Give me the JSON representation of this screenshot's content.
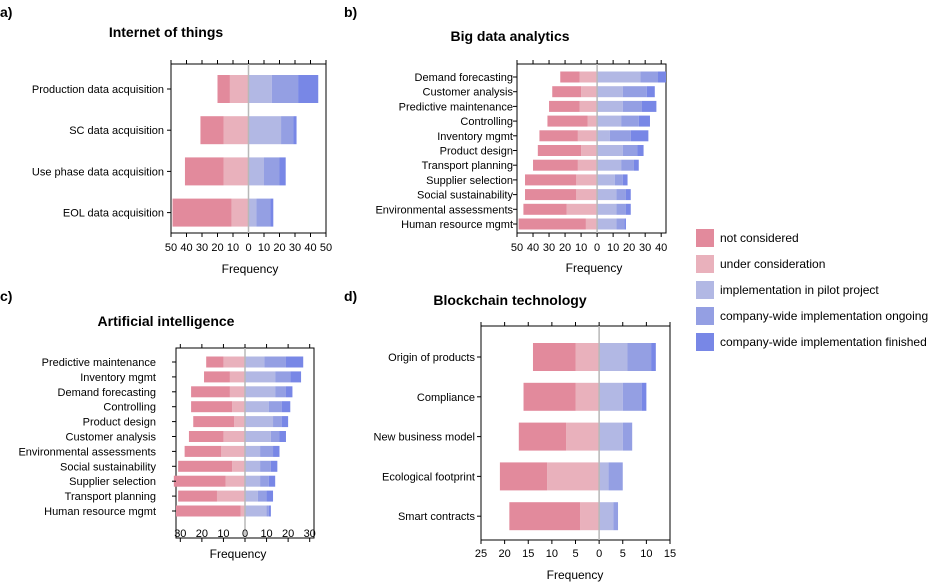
{
  "legend": {
    "entries": [
      {
        "label": "not considered",
        "color": "#e28a9c"
      },
      {
        "label": "under consideration",
        "color": "#e9b1bc"
      },
      {
        "label": "implementation in pilot project",
        "color": "#b2b8e4"
      },
      {
        "label": "company-wide implementation ongoing",
        "color": "#949fe3"
      },
      {
        "label": "company-wide implementation finished",
        "color": "#7887e6"
      }
    ]
  },
  "chart_data": [
    {
      "type": "bar",
      "letter": "a)",
      "title": "Internet of things",
      "xlabel": "Frequency",
      "xlim": [
        -50,
        50
      ],
      "xticks": [
        "50",
        "40",
        "30",
        "20",
        "10",
        "0",
        "10",
        "20",
        "30",
        "40",
        "50"
      ],
      "categories": [
        "Production data acquisition",
        "SC data acquisition",
        "Use phase data acquisition",
        "EOL data acquisition"
      ],
      "series": [
        {
          "name": "not considered",
          "values": [
            -8,
            -15,
            -25,
            -38
          ]
        },
        {
          "name": "under consideration",
          "values": [
            -12,
            -16,
            -16,
            -11
          ]
        },
        {
          "name": "implementation in pilot project",
          "values": [
            15,
            21,
            10,
            5
          ]
        },
        {
          "name": "company-wide implementation ongoing",
          "values": [
            17,
            8,
            10,
            9
          ]
        },
        {
          "name": "company-wide implementation finished",
          "values": [
            13,
            2,
            4,
            2
          ]
        }
      ]
    },
    {
      "type": "bar",
      "letter": "b)",
      "title": "Big data analytics",
      "xlabel": "Frequency",
      "xlim": [
        -50,
        43
      ],
      "xticks": [
        "50",
        "40",
        "30",
        "20",
        "10",
        "0",
        "10",
        "20",
        "30",
        "40"
      ],
      "categories": [
        "Demand forecasting",
        "Customer analysis",
        "Predictive maintenance",
        "Controlling",
        "Inventory mgmt",
        "Product design",
        "Transport planning",
        "Supplier selection",
        "Social sustainability",
        "Environmental assessments",
        "Human resource mgmt"
      ],
      "series": [
        {
          "name": "not considered",
          "values": [
            -12,
            -18,
            -19,
            -25,
            -24,
            -27,
            -28,
            -32,
            -32,
            -27,
            -42
          ]
        },
        {
          "name": "under consideration",
          "values": [
            -11,
            -10,
            -11,
            -6,
            -12,
            -10,
            -12,
            -13,
            -13,
            -19,
            -7
          ]
        },
        {
          "name": "implementation in pilot project",
          "values": [
            27,
            16,
            16,
            15,
            8,
            16,
            15,
            11,
            12,
            12,
            12
          ]
        },
        {
          "name": "company-wide implementation ongoing",
          "values": [
            11,
            15,
            12,
            11,
            13,
            9,
            8,
            5,
            6,
            6,
            5
          ]
        },
        {
          "name": "company-wide implementation finished",
          "values": [
            5,
            5,
            9,
            7,
            11,
            4,
            3,
            3,
            3,
            3,
            1
          ]
        }
      ]
    },
    {
      "type": "bar",
      "letter": "c)",
      "title": "Artificial intelligence",
      "xlabel": "Frequency",
      "xlim": [
        -32,
        32
      ],
      "xticks": [
        "30",
        "20",
        "10",
        "0",
        "10",
        "20",
        "30"
      ],
      "categories": [
        "Predictive maintenance",
        "Inventory mgmt",
        "Demand forecasting",
        "Controlling",
        "Product design",
        "Customer analysis",
        "Environmental assessments",
        "Social sustainability",
        "Supplier selection",
        "Transport planning",
        "Human resource mgmt"
      ],
      "series": [
        {
          "name": "not considered",
          "values": [
            -8,
            -12,
            -18,
            -19,
            -19,
            -16,
            -17,
            -25,
            -24,
            -18,
            -30
          ]
        },
        {
          "name": "under consideration",
          "values": [
            -10,
            -7,
            -7,
            -6,
            -5,
            -10,
            -11,
            -6,
            -9,
            -13,
            -2
          ]
        },
        {
          "name": "implementation in pilot project",
          "values": [
            9,
            14,
            14,
            11,
            13,
            12,
            7,
            7,
            7,
            6,
            10
          ]
        },
        {
          "name": "company-wide implementation ongoing",
          "values": [
            10,
            7,
            5,
            6,
            4,
            4,
            6,
            5,
            4,
            4,
            1
          ]
        },
        {
          "name": "company-wide implementation finished",
          "values": [
            8,
            5,
            3,
            4,
            3,
            3,
            3,
            3,
            3,
            3,
            1
          ]
        }
      ]
    },
    {
      "type": "bar",
      "letter": "d)",
      "title": "Blockchain technology",
      "xlabel": "Frequency",
      "xlim": [
        -25,
        15
      ],
      "xticks": [
        "25",
        "20",
        "15",
        "10",
        "5",
        "0",
        "5",
        "10",
        "15"
      ],
      "categories": [
        "Origin of products",
        "Compliance",
        "New business model",
        "Ecological footprint",
        "Smart contracts"
      ],
      "series": [
        {
          "name": "not considered",
          "values": [
            -9,
            -11,
            -10,
            -10,
            -15
          ]
        },
        {
          "name": "under consideration",
          "values": [
            -5,
            -5,
            -7,
            -11,
            -4
          ]
        },
        {
          "name": "implementation in pilot project",
          "values": [
            6,
            5,
            5,
            2,
            3
          ]
        },
        {
          "name": "company-wide implementation ongoing",
          "values": [
            5,
            4,
            2,
            3,
            1
          ]
        },
        {
          "name": "company-wide implementation finished",
          "values": [
            1,
            1,
            0,
            0,
            0
          ]
        }
      ]
    }
  ]
}
